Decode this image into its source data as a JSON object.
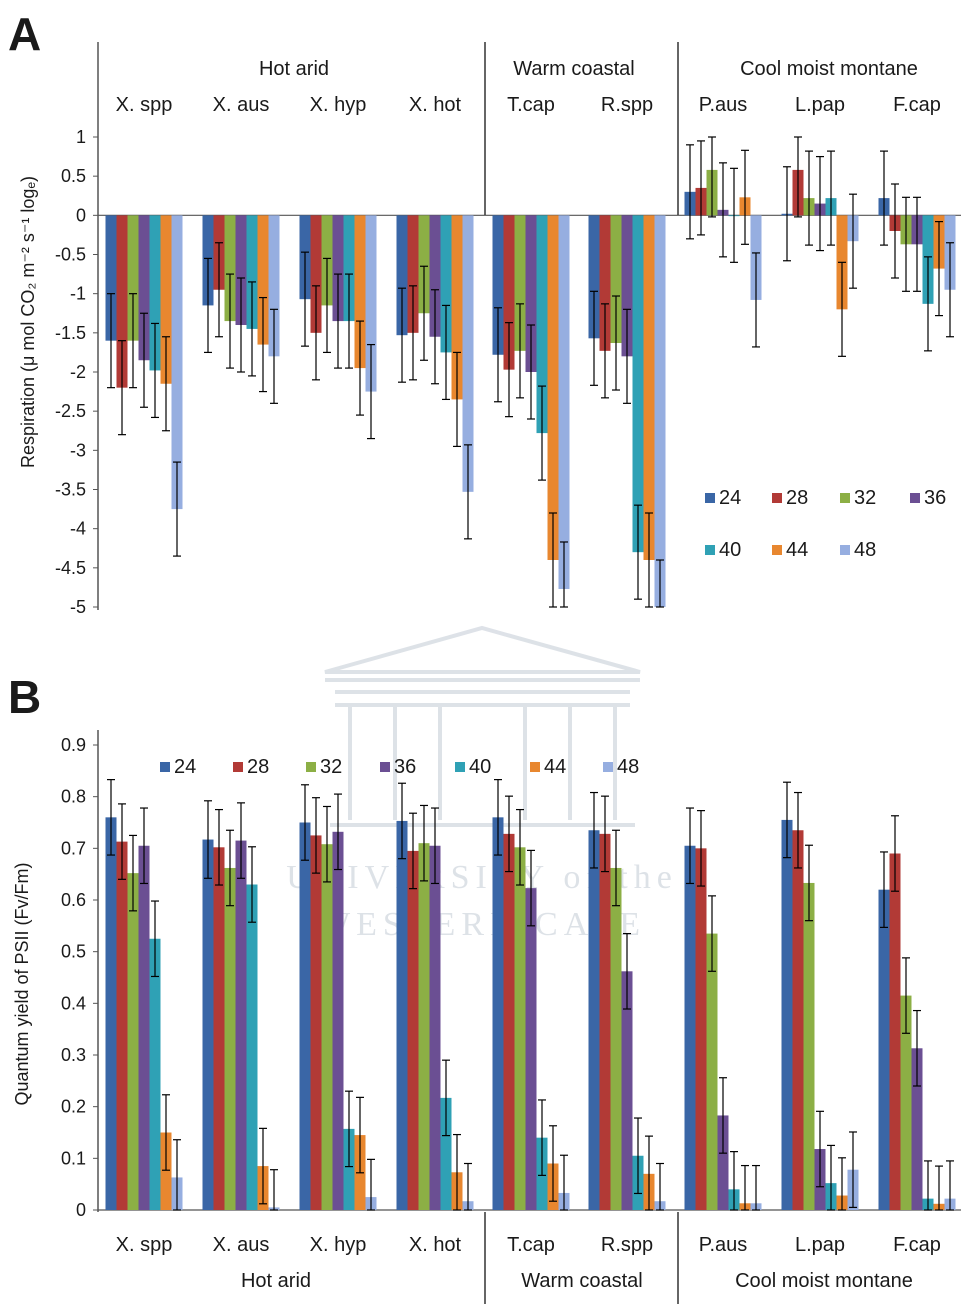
{
  "figure": {
    "panel_a_letter": "A",
    "panel_b_letter": "B",
    "watermark": {
      "line1": "UNIVERSITY of the",
      "line2": "WESTERN CAPE"
    }
  },
  "colors": {
    "24": "#3a66a6",
    "28": "#b23a36",
    "32": "#8caf45",
    "36": "#6b4f93",
    "40": "#2fa1b5",
    "44": "#e8872f",
    "48": "#96aee0",
    "error_bar": "#000000",
    "axis": "#555555",
    "watermark": "#c8cfd8"
  },
  "chart_data": [
    {
      "type": "bar",
      "panel": "A",
      "ylabel": "Respiration (μ mol CO₂ m⁻² s⁻¹ logₑ)",
      "ylim": [
        -5,
        1
      ],
      "yticks": [
        "1",
        "0.5",
        "0",
        "-0.5",
        "-1",
        "-1.5",
        "-2",
        "-2.5",
        "-3",
        "-3.5",
        "-4",
        "-4.5",
        "-5"
      ],
      "groups": [
        {
          "name": "Hot arid",
          "categories": [
            "X. spp",
            "X. aus",
            "X. hyp",
            "X. hot"
          ]
        },
        {
          "name": "Warm coastal",
          "categories": [
            "T.cap",
            "R.spp"
          ]
        },
        {
          "name": "Cool moist montane",
          "categories": [
            "P.aus",
            "L.pap",
            "F.cap"
          ]
        }
      ],
      "categories": [
        "X. spp",
        "X. aus",
        "X. hyp",
        "X. hot",
        "T.cap",
        "R.spp",
        "P.aus",
        "L.pap",
        "F.cap"
      ],
      "legend": [
        "24",
        "28",
        "32",
        "36",
        "40",
        "44",
        "48"
      ],
      "legend_position": "lower-right",
      "series": [
        {
          "name": "24",
          "values": [
            -1.6,
            -1.15,
            -1.07,
            -1.53,
            -1.78,
            -1.57,
            0.3,
            0.02,
            0.22
          ],
          "errors": [
            0.6,
            0.6,
            0.6,
            0.6,
            0.6,
            0.6,
            0.6,
            0.6,
            0.6
          ]
        },
        {
          "name": "28",
          "values": [
            -2.2,
            -0.95,
            -1.5,
            -1.5,
            -1.97,
            -1.73,
            0.35,
            0.58,
            -0.2
          ],
          "errors": [
            0.6,
            0.6,
            0.6,
            0.6,
            0.6,
            0.6,
            0.6,
            0.6,
            0.6
          ]
        },
        {
          "name": "32",
          "values": [
            -1.6,
            -1.35,
            -1.15,
            -1.25,
            -1.73,
            -1.63,
            0.58,
            0.22,
            -0.37
          ],
          "errors": [
            0.6,
            0.6,
            0.6,
            0.6,
            0.6,
            0.6,
            0.6,
            0.6,
            0.6
          ]
        },
        {
          "name": "36",
          "values": [
            -1.85,
            -1.4,
            -1.35,
            -1.55,
            -2.0,
            -1.8,
            0.07,
            0.15,
            -0.37
          ],
          "errors": [
            0.6,
            0.6,
            0.6,
            0.6,
            0.6,
            0.6,
            0.6,
            0.6,
            0.6
          ]
        },
        {
          "name": "40",
          "values": [
            -1.98,
            -1.45,
            -1.35,
            -1.75,
            -2.78,
            -4.3,
            0.0,
            0.22,
            -1.13
          ],
          "errors": [
            0.6,
            0.6,
            0.6,
            0.6,
            0.6,
            0.6,
            0.6,
            0.6,
            0.6
          ]
        },
        {
          "name": "44",
          "values": [
            -2.15,
            -1.65,
            -1.95,
            -2.35,
            -4.4,
            -4.4,
            0.23,
            -1.2,
            -0.68
          ],
          "errors": [
            0.6,
            0.6,
            0.6,
            0.6,
            0.6,
            0.6,
            0.6,
            0.6,
            0.6
          ]
        },
        {
          "name": "48",
          "values": [
            -3.75,
            -1.8,
            -2.25,
            -3.53,
            -4.77,
            -5.0,
            -1.08,
            -0.33,
            -0.95
          ],
          "errors": [
            0.6,
            0.6,
            0.6,
            0.6,
            0.6,
            0.6,
            0.6,
            0.6,
            0.6
          ]
        }
      ]
    },
    {
      "type": "bar",
      "panel": "B",
      "ylabel": "Quantum yield of PSII (Fv/Fm)",
      "ylim": [
        0,
        0.9
      ],
      "yticks": [
        "0.9",
        "0.8",
        "0.7",
        "0.6",
        "0.5",
        "0.4",
        "0.3",
        "0.2",
        "0.1",
        "0"
      ],
      "groups": [
        {
          "name": "Hot arid",
          "categories": [
            "X. spp",
            "X. aus",
            "X. hyp",
            "X. hot"
          ]
        },
        {
          "name": "Warm coastal",
          "categories": [
            "T.cap",
            "R.spp"
          ]
        },
        {
          "name": "Cool moist montane",
          "categories": [
            "P.aus",
            "L.pap",
            "F.cap"
          ]
        }
      ],
      "categories": [
        "X. spp",
        "X. aus",
        "X. hyp",
        "X. hot",
        "T.cap",
        "R.spp",
        "P.aus",
        "L.pap",
        "F.cap"
      ],
      "legend": [
        "24",
        "28",
        "32",
        "36",
        "40",
        "44",
        "48"
      ],
      "legend_position": "top-left",
      "series": [
        {
          "name": "24",
          "values": [
            0.76,
            0.717,
            0.75,
            0.753,
            0.76,
            0.735,
            0.705,
            0.755,
            0.62
          ],
          "errors": [
            0.073,
            0.075,
            0.073,
            0.073,
            0.073,
            0.073,
            0.073,
            0.073,
            0.073
          ]
        },
        {
          "name": "28",
          "values": [
            0.713,
            0.702,
            0.725,
            0.695,
            0.728,
            0.728,
            0.7,
            0.735,
            0.69
          ],
          "errors": [
            0.073,
            0.073,
            0.073,
            0.073,
            0.073,
            0.073,
            0.073,
            0.073,
            0.073
          ]
        },
        {
          "name": "32",
          "values": [
            0.652,
            0.662,
            0.708,
            0.71,
            0.702,
            0.662,
            0.535,
            0.633,
            0.415
          ],
          "errors": [
            0.073,
            0.073,
            0.073,
            0.073,
            0.073,
            0.073,
            0.073,
            0.073,
            0.073
          ]
        },
        {
          "name": "36",
          "values": [
            0.705,
            0.715,
            0.732,
            0.705,
            0.623,
            0.462,
            0.183,
            0.118,
            0.313
          ],
          "errors": [
            0.073,
            0.073,
            0.073,
            0.073,
            0.073,
            0.073,
            0.073,
            0.073,
            0.073
          ]
        },
        {
          "name": "40",
          "values": [
            0.525,
            0.63,
            0.157,
            0.217,
            0.14,
            0.105,
            0.04,
            0.052,
            0.022
          ],
          "errors": [
            0.073,
            0.073,
            0.073,
            0.073,
            0.073,
            0.073,
            0.073,
            0.073,
            0.073
          ]
        },
        {
          "name": "44",
          "values": [
            0.15,
            0.085,
            0.145,
            0.073,
            0.09,
            0.07,
            0.013,
            0.028,
            0.012
          ],
          "errors": [
            0.073,
            0.073,
            0.073,
            0.073,
            0.073,
            0.073,
            0.073,
            0.073,
            0.073
          ]
        },
        {
          "name": "48",
          "values": [
            0.063,
            0.005,
            0.025,
            0.017,
            0.033,
            0.017,
            0.013,
            0.078,
            0.022
          ],
          "errors": [
            0.073,
            0.073,
            0.073,
            0.073,
            0.073,
            0.073,
            0.073,
            0.073,
            0.073
          ]
        }
      ]
    }
  ]
}
